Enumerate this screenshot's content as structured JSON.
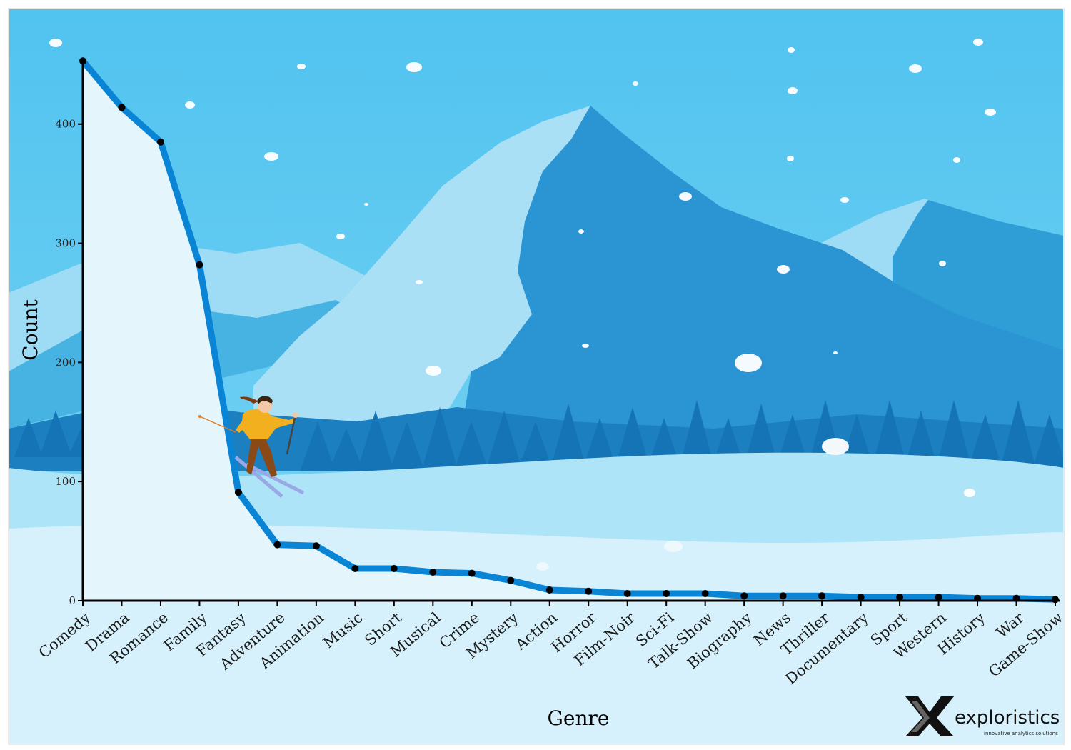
{
  "chart_data": {
    "type": "line",
    "xlabel": "Genre",
    "ylabel": "Count",
    "ylim": [
      0,
      455
    ],
    "yticks": [
      0,
      100,
      200,
      300,
      400
    ],
    "categories": [
      "Comedy",
      "Drama",
      "Romance",
      "Family",
      "Fantasy",
      "Adventure",
      "Animation",
      "Music",
      "Short",
      "Musical",
      "Crime",
      "Mystery",
      "Action",
      "Horror",
      "Film-Noir",
      "Sci-Fi",
      "Talk-Show",
      "Biography",
      "News",
      "Thriller",
      "Documentary",
      "Sport",
      "Western",
      "History",
      "War",
      "Game-Show"
    ],
    "values": [
      453,
      414,
      385,
      282,
      91,
      47,
      46,
      27,
      27,
      24,
      23,
      17,
      9,
      8,
      6,
      6,
      6,
      4,
      4,
      4,
      3,
      3,
      3,
      2,
      2,
      1
    ],
    "line_color": "#0a85d6",
    "fill_color": "#e4f6fc"
  },
  "logo": {
    "name": "exploristics",
    "tagline": "innovative analytics solutions"
  }
}
